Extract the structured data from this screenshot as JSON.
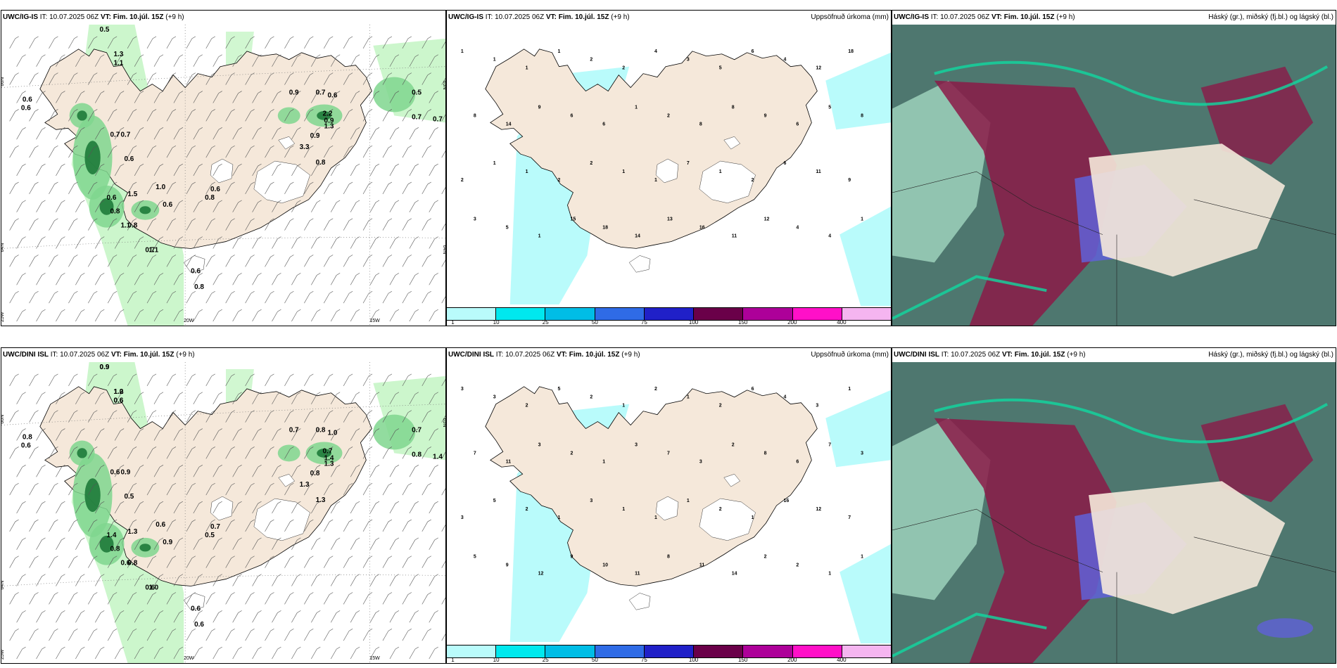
{
  "panels": [
    {
      "id": "ig-precip-wind",
      "header": {
        "model": "UWC/IG-IS",
        "it_label": "IT:",
        "it_value": "10.07.2025 06Z",
        "vt_label": "VT:",
        "vt_value": "Fim. 10.júl. 15Z",
        "lead": "(+9 h)",
        "right_title": ""
      },
      "values": [
        "0.5",
        "1.3",
        "1.1",
        "0.6",
        "0.6",
        "0.9",
        "0.7",
        "0.7",
        "0.6",
        "1.0",
        "0.6",
        "1.5",
        "0.8",
        "0.8",
        "0.7",
        "0.6",
        "1.1",
        "1.1",
        "0.6",
        "0.8",
        "0.6",
        "0.7",
        "0.6",
        "0.8",
        "0.9",
        "1.3",
        "0.9",
        "2.2",
        "3.3",
        "0.8",
        "0.5",
        "0.7",
        "0.7"
      ],
      "lon_labels": [
        "20W",
        "15W"
      ],
      "lat_labels": [
        "66N",
        "64N",
        "25W",
        "65N",
        "64N"
      ]
    },
    {
      "id": "ig-accum",
      "header": {
        "model": "UWC/IG-IS",
        "it_label": "IT:",
        "it_value": "10.07.2025 06Z",
        "vt_label": "VT:",
        "vt_value": "Fim. 10.júl. 15Z",
        "lead": "(+9 h)",
        "right_title": "Uppsöfnuð úrkoma (mm)"
      },
      "values": [
        "1",
        "1",
        "1",
        "1",
        "2",
        "2",
        "4",
        "3",
        "5",
        "6",
        "4",
        "12",
        "18",
        "8",
        "14",
        "9",
        "6",
        "6",
        "1",
        "2",
        "8",
        "8",
        "9",
        "6",
        "5",
        "8",
        "2",
        "1",
        "1",
        "2",
        "2",
        "1",
        "1",
        "7",
        "1",
        "2",
        "6",
        "11",
        "9",
        "3",
        "5",
        "1",
        "15",
        "18",
        "14",
        "13",
        "16",
        "11",
        "12",
        "4",
        "4",
        "1"
      ],
      "colorbar": {
        "ticks": [
          "1",
          "10",
          "25",
          "50",
          "75",
          "100",
          "150",
          "200",
          "400"
        ],
        "colors": [
          "#b9fbfb",
          "#00e8ee",
          "#00bde6",
          "#2f6be6",
          "#2020c8",
          "#6a0049",
          "#ad0099",
          "#ff10c8",
          "#f5b5f0"
        ]
      }
    },
    {
      "id": "ig-cloud",
      "header": {
        "model": "UWC/IG-IS",
        "it_label": "IT:",
        "it_value": "10.07.2025 06Z",
        "vt_label": "VT:",
        "vt_value": "Fim. 10.júl. 15Z",
        "lead": "(+9 h)",
        "right_title": "Háský (gr.), miðský (fj.bl.) og lágský (bl.)"
      }
    },
    {
      "id": "dini-precip-wind",
      "header": {
        "model": "UWC/DINI ISL",
        "it_label": "IT:",
        "it_value": "10.07.2025 06Z",
        "vt_label": "VT:",
        "vt_value": "Fim. 10.júl. 15Z",
        "lead": "(+9 h)",
        "right_title": ""
      },
      "values": [
        "0.9",
        "1.0",
        "0.6",
        "0.8",
        "0.6",
        "0.7",
        "0.6",
        "0.9",
        "0.5",
        "0.6",
        "1.4",
        "1.3",
        "0.8",
        "0.8",
        "0.6",
        "0.9",
        "0.6",
        "1.0",
        "0.6",
        "0.5",
        "0.7",
        "0.8",
        "1.0",
        "1.3",
        "1.4",
        "1.3",
        "0.8",
        "0.7",
        "1.3",
        "0.6",
        "0.7",
        "0.8",
        "1.4",
        "0.9",
        "1.2",
        "0.6"
      ],
      "lon_labels": [
        "20W",
        "15W"
      ],
      "lat_labels": [
        "66N",
        "64N",
        "25W",
        "65N"
      ]
    },
    {
      "id": "dini-accum",
      "header": {
        "model": "UWC/DINI ISL",
        "it_label": "IT:",
        "it_value": "10.07.2025 06Z",
        "vt_label": "VT:",
        "vt_value": "Fim. 10.júl. 15Z",
        "lead": "(+9 h)",
        "right_title": "Uppsöfnuð úrkoma (mm)"
      },
      "values": [
        "3",
        "3",
        "2",
        "5",
        "2",
        "1",
        "2",
        "1",
        "2",
        "6",
        "4",
        "3",
        "1",
        "7",
        "11",
        "3",
        "2",
        "1",
        "3",
        "7",
        "3",
        "2",
        "8",
        "6",
        "7",
        "3",
        "3",
        "5",
        "2",
        "1",
        "3",
        "1",
        "1",
        "1",
        "2",
        "1",
        "16",
        "12",
        "7",
        "5",
        "9",
        "12",
        "9",
        "10",
        "11",
        "8",
        "11",
        "14",
        "2",
        "2",
        "1",
        "1"
      ],
      "colorbar": {
        "ticks": [
          "1",
          "10",
          "25",
          "50",
          "75",
          "100",
          "150",
          "200",
          "400"
        ],
        "colors": [
          "#b9fbfb",
          "#00e8ee",
          "#00bde6",
          "#2f6be6",
          "#2020c8",
          "#6a0049",
          "#ad0099",
          "#ff10c8",
          "#f5b5f0"
        ]
      }
    },
    {
      "id": "dini-cloud",
      "header": {
        "model": "UWC/DINI ISL",
        "it_label": "IT:",
        "it_value": "10.07.2025 06Z",
        "vt_label": "VT:",
        "vt_value": "Fim. 10.júl. 15Z",
        "lead": "(+9 h)",
        "right_title": "Háský (gr.), miðský (fj.bl.) og lágský (bl.)"
      }
    }
  ],
  "colors": {
    "land": "#f5e8da",
    "glacier": "#ffffff",
    "precip_light": "#c6f5c6",
    "precip_mid": "#7fd68e",
    "precip_dark": "#1e7a3a",
    "accum_water": "#b9fbfb",
    "cloud_high": "#2f5f56",
    "cloud_mid": "#8b1a48",
    "cloud_low": "#6060d8",
    "cloud_edge": "#10d8a0"
  }
}
